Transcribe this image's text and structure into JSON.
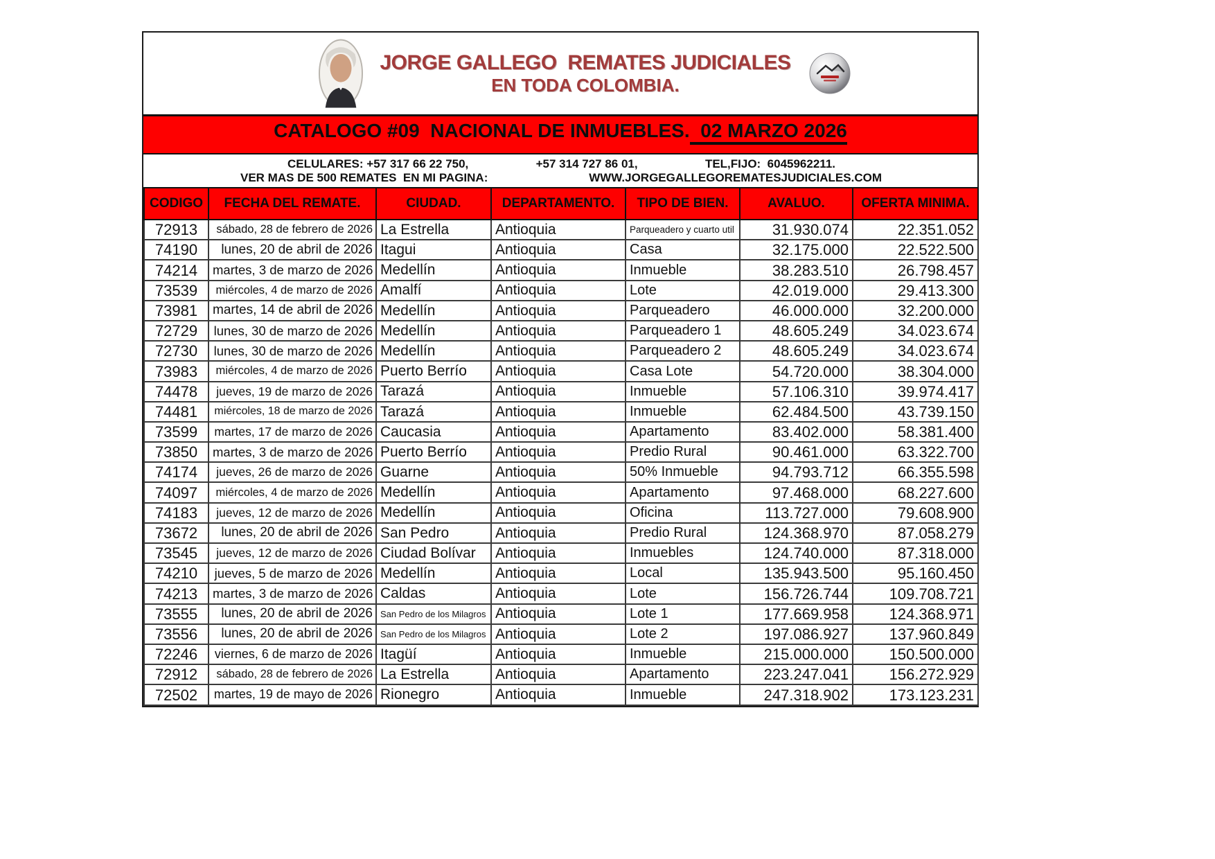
{
  "header": {
    "brand_line1": "JORGE GALLEGO  REMATES JUDICIALES",
    "brand_line2": "EN TODA COLOMBIA.",
    "portrait_icon": "portrait-photo",
    "logo_icon": "house-sphere-logo",
    "banner_title": "CATALOGO #09  NACIONAL DE INMUEBLES.",
    "banner_date": "  02 MARZO 2026"
  },
  "contact": {
    "celulares": "CELULARES: +57 317 66 22 750,",
    "phone2": "+57 314 727 86 01,",
    "tel_fijo": "TEL,FIJO:  6045962211.",
    "ver_mas": "VER MAS DE 500 REMATES  EN MI PAGINA:",
    "website": "WWW.JORGEGALLEGOREMATESJUDICIALES.COM"
  },
  "colors": {
    "banner_red": "#FE0000",
    "brand_red": "#A23B3B",
    "text_black": "#111111"
  },
  "table": {
    "columns": [
      "CODIGO",
      "FECHA DEL REMATE.",
      "CIUDAD.",
      "DEPARTAMENTO.",
      "TIPO DE BIEN.",
      "AVALUO.",
      "OFERTA MINIMA."
    ],
    "rows": [
      [
        "72913",
        "sábado, 28 de febrero de 2026",
        "La Estrella",
        "Antioquia",
        "Parqueadero y cuarto util",
        "31.930.074",
        "22.351.052"
      ],
      [
        "74190",
        "lunes, 20 de abril de 2026",
        "Itagui",
        "Antioquia",
        "Casa",
        "32.175.000",
        "22.522.500"
      ],
      [
        "74214",
        "martes, 3 de marzo de 2026",
        "Medellín",
        "Antioquia",
        "Inmueble",
        "38.283.510",
        "26.798.457"
      ],
      [
        "73539",
        "miércoles, 4 de marzo de 2026",
        "Amalfí",
        "Antioquia",
        "Lote",
        "42.019.000",
        "29.413.300"
      ],
      [
        "73981",
        "martes, 14 de abril de 2026",
        "Medellín",
        "Antioquia",
        "Parqueadero",
        "46.000.000",
        "32.200.000"
      ],
      [
        "72729",
        "lunes, 30 de marzo de 2026",
        "Medellín",
        "Antioquia",
        "Parqueadero 1",
        "48.605.249",
        "34.023.674"
      ],
      [
        "72730",
        "lunes, 30 de marzo de 2026",
        "Medellín",
        "Antioquia",
        "Parqueadero 2",
        "48.605.249",
        "34.023.674"
      ],
      [
        "73983",
        "miércoles, 4 de marzo de 2026",
        "Puerto Berrío",
        "Antioquia",
        "Casa Lote",
        "54.720.000",
        "38.304.000"
      ],
      [
        "74478",
        "jueves, 19 de marzo de 2026",
        "Tarazá",
        "Antioquia",
        "Inmueble",
        "57.106.310",
        "39.974.417"
      ],
      [
        "74481",
        "miércoles, 18 de marzo de 2026",
        "Tarazá",
        "Antioquia",
        "Inmueble",
        "62.484.500",
        "43.739.150"
      ],
      [
        "73599",
        "martes, 17 de marzo de 2026",
        "Caucasia",
        "Antioquia",
        "Apartamento",
        "83.402.000",
        "58.381.400"
      ],
      [
        "73850",
        "martes, 3 de marzo de 2026",
        "Puerto Berrío",
        "Antioquia",
        "Predio Rural",
        "90.461.000",
        "63.322.700"
      ],
      [
        "74174",
        "jueves, 26 de marzo de 2026",
        "Guarne",
        "Antioquia",
        "50% Inmueble",
        "94.793.712",
        "66.355.598"
      ],
      [
        "74097",
        "miércoles, 4 de marzo de 2026",
        "Medellín",
        "Antioquia",
        "Apartamento",
        "97.468.000",
        "68.227.600"
      ],
      [
        "74183",
        "jueves, 12 de marzo de 2026",
        "Medellín",
        "Antioquia",
        "Oficina",
        "113.727.000",
        "79.608.900"
      ],
      [
        "73672",
        "lunes, 20 de abril de 2026",
        "San Pedro",
        "Antioquia",
        "Predio Rural",
        "124.368.970",
        "87.058.279"
      ],
      [
        "73545",
        "jueves, 12 de marzo de 2026",
        "Ciudad Bolívar",
        "Antioquia",
        "Inmuebles",
        "124.740.000",
        "87.318.000"
      ],
      [
        "74210",
        "jueves, 5 de marzo de 2026",
        "Medellín",
        "Antioquia",
        "Local",
        "135.943.500",
        "95.160.450"
      ],
      [
        "74213",
        "martes, 3 de marzo de 2026",
        "Caldas",
        "Antioquia",
        "Lote",
        "156.726.744",
        "109.708.721"
      ],
      [
        "73555",
        "lunes, 20 de abril de 2026",
        "San Pedro de los Milagros",
        "Antioquia",
        "Lote 1",
        "177.669.958",
        "124.368.971"
      ],
      [
        "73556",
        "lunes, 20 de abril de 2026",
        "San Pedro de los Milagros",
        "Antioquia",
        "Lote 2",
        "197.086.927",
        "137.960.849"
      ],
      [
        "72246",
        "viernes, 6 de marzo de 2026",
        "Itagüí",
        "Antioquia",
        "Inmueble",
        "215.000.000",
        "150.500.000"
      ],
      [
        "72912",
        "sábado, 28 de febrero de 2026",
        "La Estrella",
        "Antioquia",
        "Apartamento",
        "223.247.041",
        "156.272.929"
      ],
      [
        "72502",
        "martes, 19 de mayo de 2026",
        "Rionegro",
        "Antioquia",
        "Inmueble",
        "247.318.902",
        "173.123.231"
      ]
    ]
  }
}
